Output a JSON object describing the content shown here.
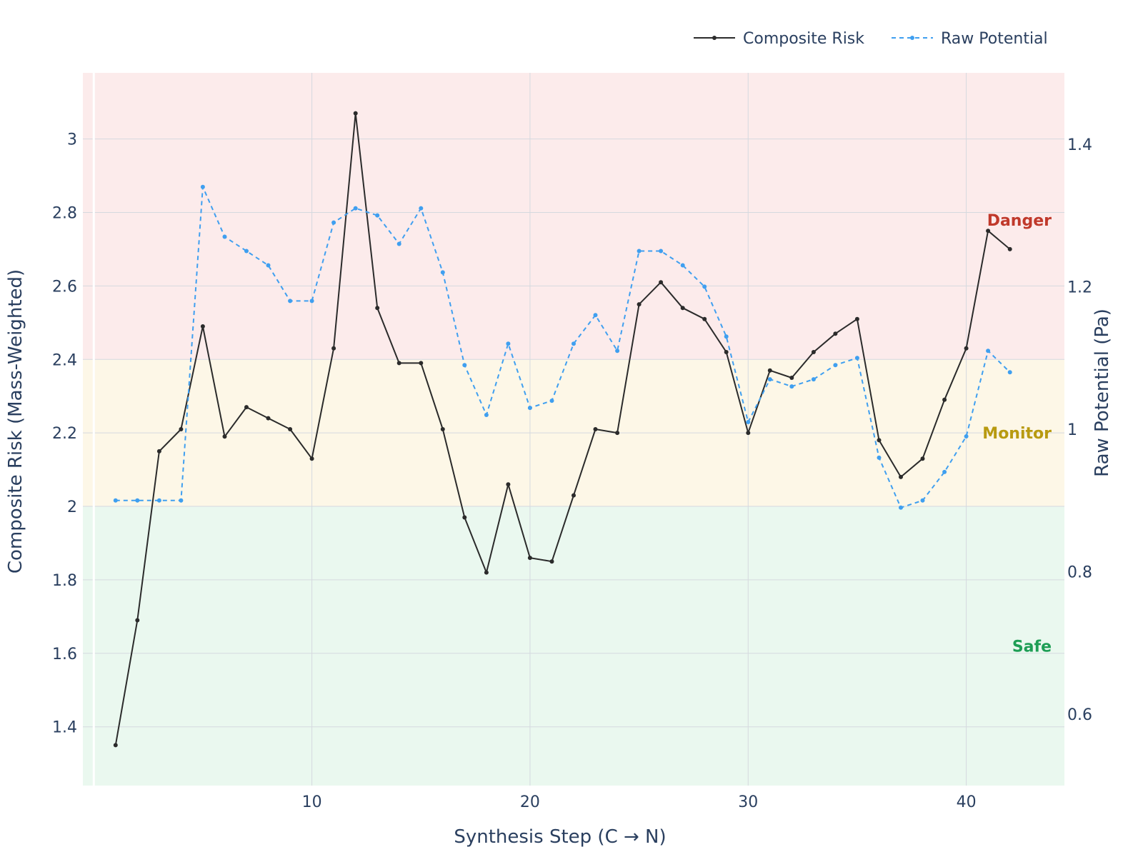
{
  "chart_data": {
    "type": "line",
    "xlabel": "Synthesis Step (C → N)",
    "ylabel": "Composite Risk (Mass-Weighted)",
    "y2label": "Raw Potential (Pa)",
    "xlim": [
      -0.5,
      44.5
    ],
    "ylim": [
      1.24,
      3.18
    ],
    "y2lim": [
      0.5,
      1.5
    ],
    "x_ticks": [
      10,
      20,
      30,
      40
    ],
    "y_ticks": [
      1.4,
      1.6,
      1.8,
      2,
      2.2,
      2.4,
      2.6,
      2.8,
      3
    ],
    "y_tick_labels": [
      "1.4",
      "1.6",
      "1.8",
      "2",
      "2.2",
      "2.4",
      "2.6",
      "2.8",
      "3"
    ],
    "y2_ticks": [
      0.6,
      0.8,
      1.0,
      1.2,
      1.4
    ],
    "y2_tick_labels": [
      "0.6",
      "0.8",
      "1",
      "1.2",
      "1.4"
    ],
    "grid": true,
    "legend_position": "top-right",
    "zones": [
      {
        "label": "Safe",
        "from": 1.24,
        "to": 2.0,
        "color": "#eaf8ef",
        "label_color": "#1e9e55",
        "label_y": 1.62
      },
      {
        "label": "Monitor",
        "from": 2.0,
        "to": 2.4,
        "color": "#fdf7e7",
        "label_color": "#b89a10",
        "label_y": 2.2
      },
      {
        "label": "Danger",
        "from": 2.4,
        "to": 3.18,
        "color": "#fcebeb",
        "label_color": "#c0392b",
        "label_y": 2.78
      }
    ],
    "x": [
      1,
      2,
      3,
      4,
      5,
      6,
      7,
      8,
      9,
      10,
      11,
      12,
      13,
      14,
      15,
      16,
      17,
      18,
      19,
      20,
      21,
      22,
      23,
      24,
      25,
      26,
      27,
      28,
      29,
      30,
      31,
      32,
      33,
      34,
      35,
      36,
      37,
      38,
      39,
      40,
      41,
      42
    ],
    "series": [
      {
        "name": "Composite Risk",
        "axis": "y",
        "color": "#2b2b2b",
        "dash": "solid",
        "values": [
          1.35,
          1.69,
          2.15,
          2.21,
          2.49,
          2.19,
          2.27,
          2.24,
          2.21,
          2.13,
          2.43,
          3.07,
          2.54,
          2.39,
          2.39,
          2.21,
          1.97,
          1.82,
          2.06,
          1.86,
          1.85,
          2.03,
          2.21,
          2.2,
          2.55,
          2.61,
          2.54,
          2.51,
          2.42,
          2.2,
          2.37,
          2.35,
          2.42,
          2.47,
          2.51,
          2.18,
          2.08,
          2.13,
          2.29,
          2.43,
          2.75,
          2.7
        ]
      },
      {
        "name": "Raw Potential",
        "axis": "y2",
        "color": "#3f9ff0",
        "dash": "dashed",
        "values": [
          0.9,
          0.9,
          0.9,
          0.9,
          1.34,
          1.27,
          1.25,
          1.23,
          1.18,
          1.18,
          1.29,
          1.31,
          1.3,
          1.26,
          1.31,
          1.22,
          1.09,
          1.02,
          1.12,
          1.03,
          1.04,
          1.12,
          1.16,
          1.11,
          1.25,
          1.25,
          1.23,
          1.2,
          1.13,
          1.01,
          1.07,
          1.06,
          1.07,
          1.09,
          1.1,
          0.96,
          0.89,
          0.9,
          0.94,
          0.99,
          1.11,
          1.08
        ]
      }
    ]
  }
}
